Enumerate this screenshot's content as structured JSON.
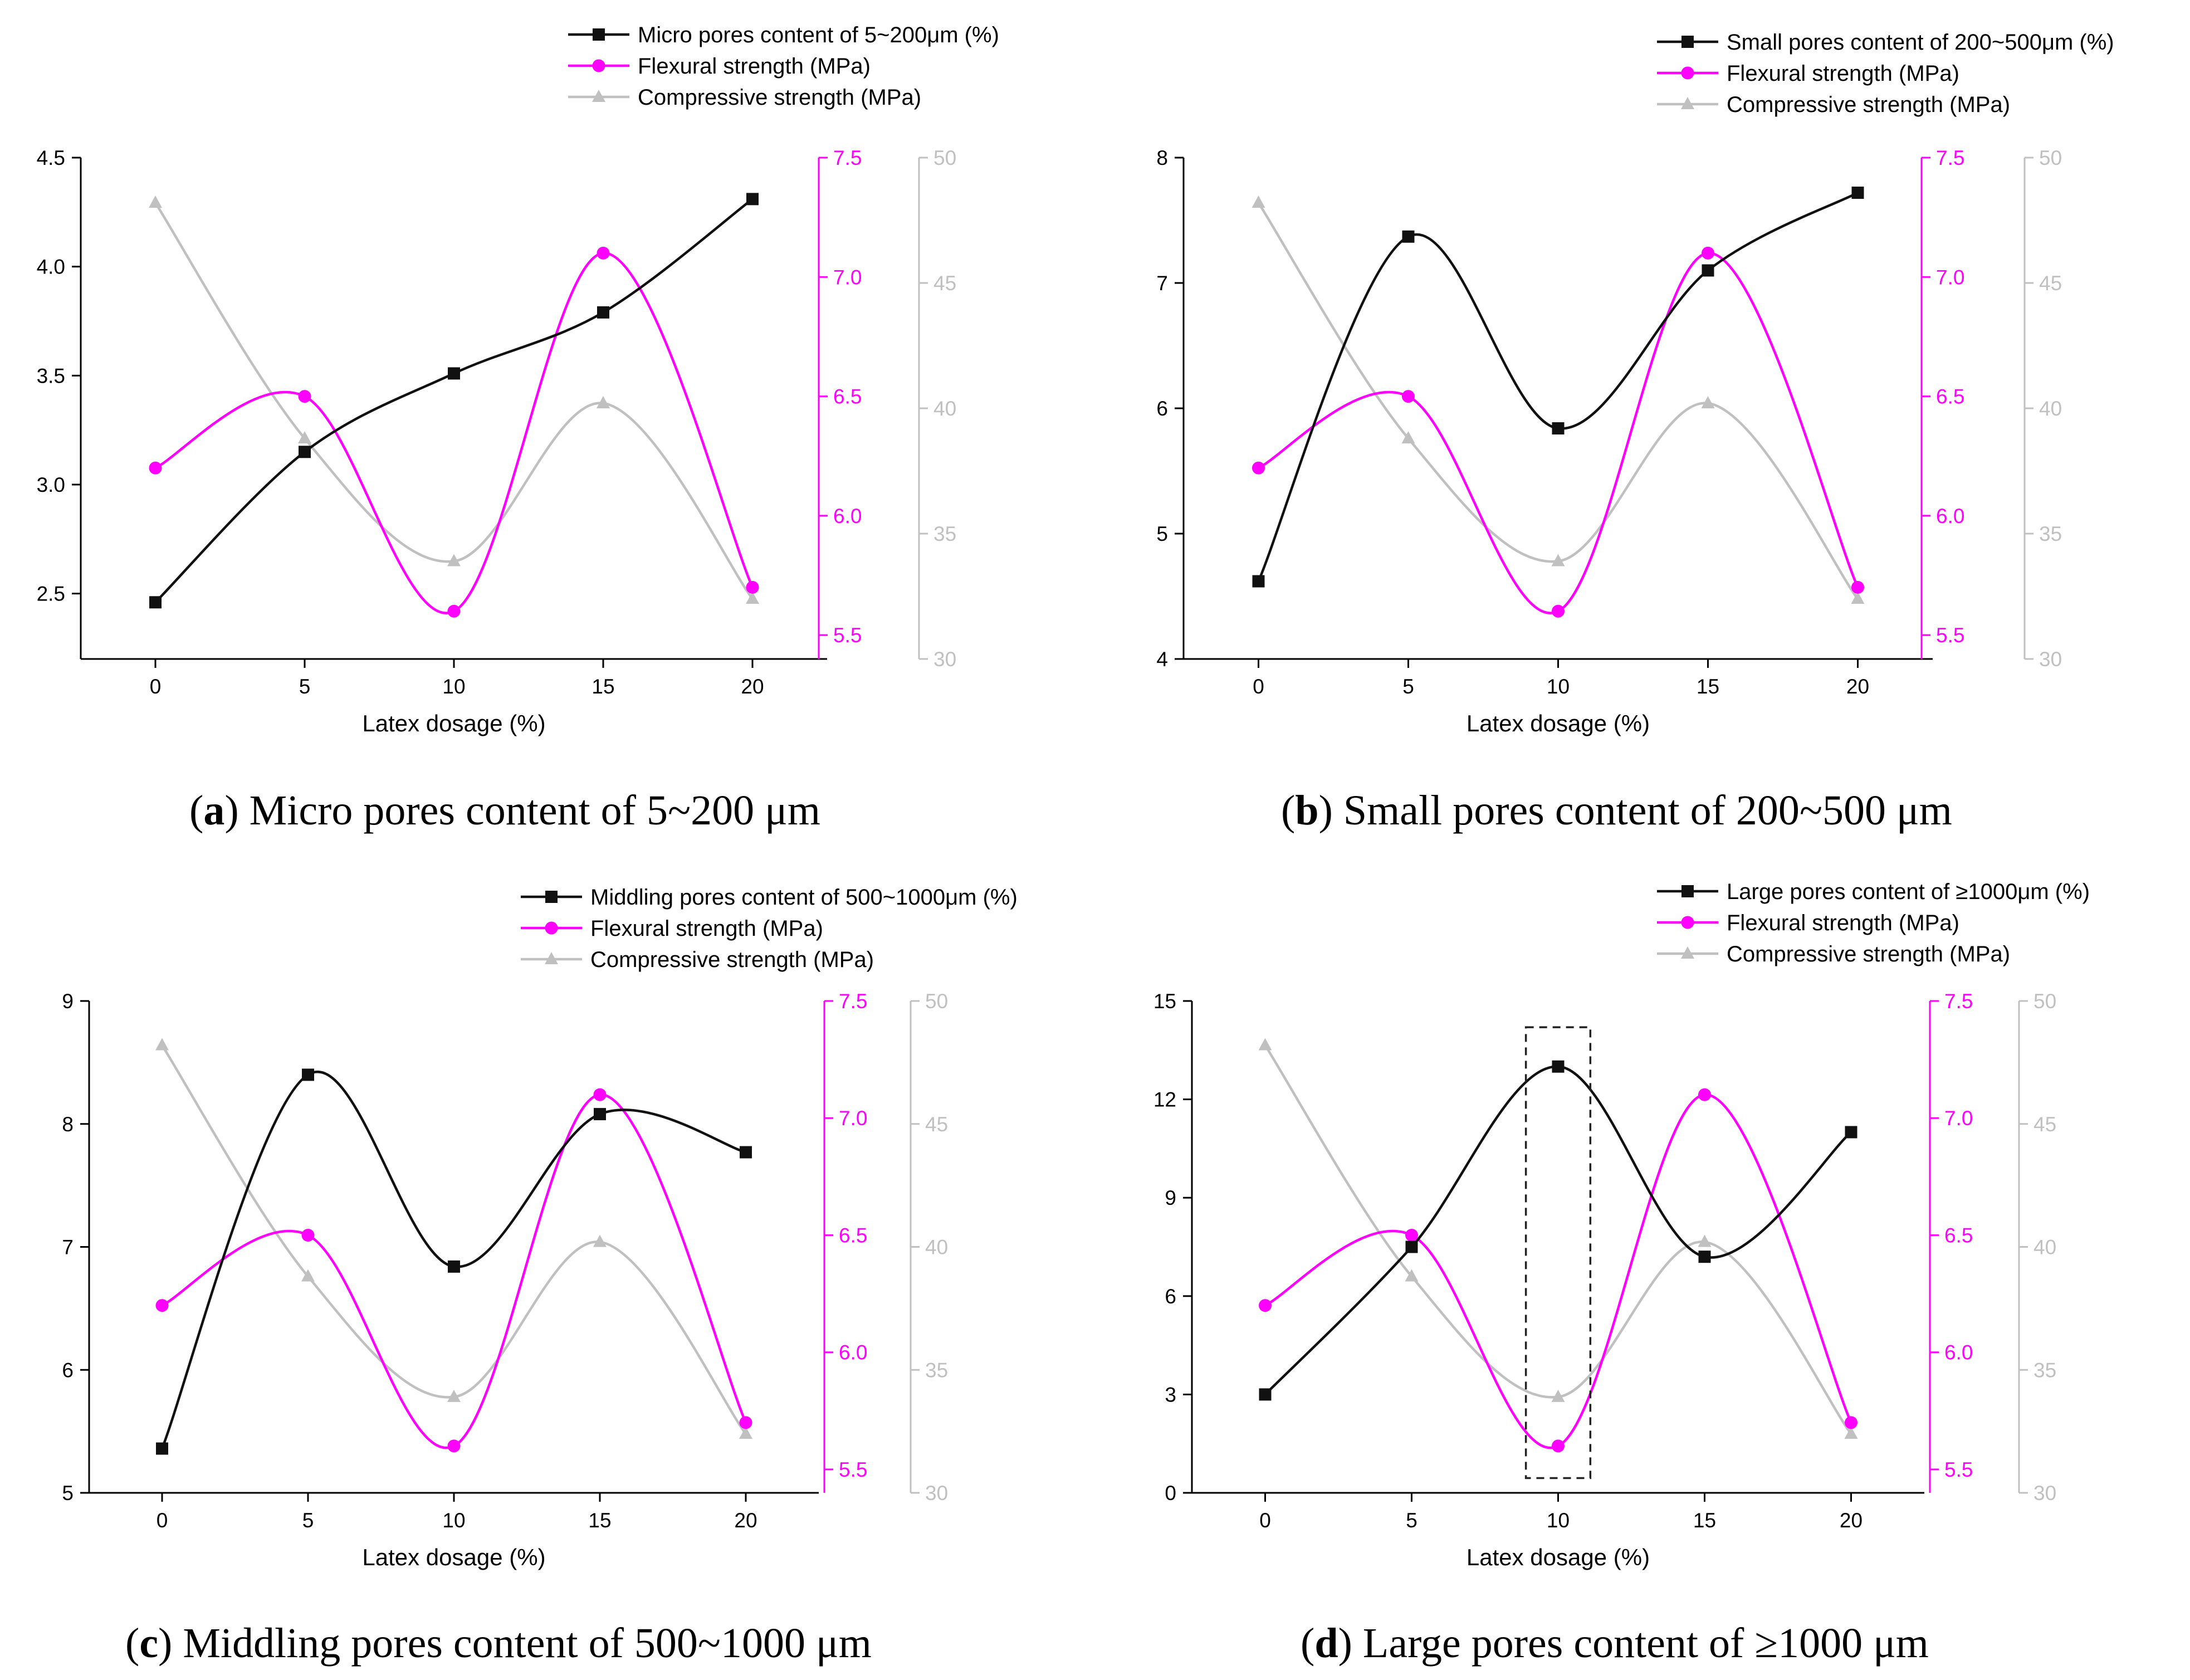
{
  "colors": {
    "pores": "#111111",
    "flexural": "#ff00ff",
    "compressive": "#c0c0c0",
    "axis": "#000000",
    "background": "#ffffff"
  },
  "chart_data": [
    {
      "id": "a",
      "type": "line",
      "caption_letter": "a",
      "caption_text": "Micro pores content of 5~200 μm",
      "xlabel": "Latex dosage (%)",
      "x": [
        0,
        5,
        10,
        15,
        20
      ],
      "x_ticks": [
        "0",
        "5",
        "10",
        "15",
        "20"
      ],
      "xlim": [
        -2.5,
        22.5
      ],
      "axes": {
        "left": {
          "ylim": [
            2.2,
            4.5
          ],
          "ticks": [
            2.5,
            3.0,
            3.5,
            4.0,
            4.5
          ],
          "tick_labels": [
            "2.5",
            "3.0",
            "3.5",
            "4.0",
            "4.5"
          ],
          "color": "#000000"
        },
        "flex": {
          "ylim": [
            5.4,
            7.5
          ],
          "ticks": [
            5.5,
            6.0,
            6.5,
            7.0,
            7.5
          ],
          "tick_labels": [
            "5.5",
            "6.0",
            "6.5",
            "7.0",
            "7.5"
          ],
          "color": "#ff00ff"
        },
        "comp": {
          "ylim": [
            30,
            50
          ],
          "ticks": [
            30,
            35,
            40,
            45,
            50
          ],
          "tick_labels": [
            "30",
            "35",
            "40",
            "45",
            "50"
          ],
          "color": "#c0c0c0"
        }
      },
      "series": [
        {
          "key": "pores",
          "axis": "left",
          "marker": "square",
          "name": "Micro pores content of 5~200μm (%)",
          "values": [
            2.46,
            3.15,
            3.51,
            3.79,
            4.31
          ]
        },
        {
          "key": "flexural",
          "axis": "flex",
          "marker": "circle",
          "name": "Flexural strength (MPa)",
          "values": [
            6.2,
            6.5,
            5.6,
            7.1,
            5.7
          ]
        },
        {
          "key": "compressive",
          "axis": "comp",
          "marker": "triangle",
          "name": "Compressive strength (MPa)",
          "values": [
            48.2,
            38.8,
            33.9,
            40.2,
            32.4
          ]
        }
      ],
      "annotation_box": null
    },
    {
      "id": "b",
      "type": "line",
      "caption_letter": "b",
      "caption_text": "Small pores content of 200~500 μm",
      "xlabel": "Latex dosage (%)",
      "x": [
        0,
        5,
        10,
        15,
        20
      ],
      "x_ticks": [
        "0",
        "5",
        "10",
        "15",
        "20"
      ],
      "xlim": [
        -2.5,
        22.5
      ],
      "axes": {
        "left": {
          "ylim": [
            4,
            8
          ],
          "ticks": [
            4,
            5,
            6,
            7,
            8
          ],
          "tick_labels": [
            "4",
            "5",
            "6",
            "7",
            "8"
          ],
          "color": "#000000"
        },
        "flex": {
          "ylim": [
            5.4,
            7.5
          ],
          "ticks": [
            5.5,
            6.0,
            6.5,
            7.0,
            7.5
          ],
          "tick_labels": [
            "5.5",
            "6.0",
            "6.5",
            "7.0",
            "7.5"
          ],
          "color": "#ff00ff"
        },
        "comp": {
          "ylim": [
            30,
            50
          ],
          "ticks": [
            30,
            35,
            40,
            45,
            50
          ],
          "tick_labels": [
            "30",
            "35",
            "40",
            "45",
            "50"
          ],
          "color": "#c0c0c0"
        }
      },
      "series": [
        {
          "key": "pores",
          "axis": "left",
          "marker": "square",
          "name": "Small pores content of 200~500μm (%)",
          "values": [
            4.62,
            7.37,
            5.84,
            7.1,
            7.72
          ]
        },
        {
          "key": "flexural",
          "axis": "flex",
          "marker": "circle",
          "name": "Flexural strength (MPa)",
          "values": [
            6.2,
            6.5,
            5.6,
            7.1,
            5.7
          ]
        },
        {
          "key": "compressive",
          "axis": "comp",
          "marker": "triangle",
          "name": "Compressive strength (MPa)",
          "values": [
            48.2,
            38.8,
            33.9,
            40.2,
            32.4
          ]
        }
      ],
      "annotation_box": null
    },
    {
      "id": "c",
      "type": "line",
      "caption_letter": "c",
      "caption_text": "Middling pores content of 500~1000 μm",
      "xlabel": "Latex dosage (%)",
      "x": [
        0,
        5,
        10,
        15,
        20
      ],
      "x_ticks": [
        "0",
        "5",
        "10",
        "15",
        "20"
      ],
      "xlim": [
        -2.5,
        22.5
      ],
      "axes": {
        "left": {
          "ylim": [
            5,
            9
          ],
          "ticks": [
            5,
            6,
            7,
            8,
            9
          ],
          "tick_labels": [
            "5",
            "6",
            "7",
            "8",
            "9"
          ],
          "color": "#000000"
        },
        "flex": {
          "ylim": [
            5.4,
            7.5
          ],
          "ticks": [
            5.5,
            6.0,
            6.5,
            7.0,
            7.5
          ],
          "tick_labels": [
            "5.5",
            "6.0",
            "6.5",
            "7.0",
            "7.5"
          ],
          "color": "#ff00ff"
        },
        "comp": {
          "ylim": [
            30,
            50
          ],
          "ticks": [
            30,
            35,
            40,
            45,
            50
          ],
          "tick_labels": [
            "30",
            "35",
            "40",
            "45",
            "50"
          ],
          "color": "#c0c0c0"
        }
      },
      "series": [
        {
          "key": "pores",
          "axis": "left",
          "marker": "square",
          "name": "Middling pores content of 500~1000μm (%)",
          "values": [
            5.36,
            8.4,
            6.84,
            8.08,
            7.77
          ]
        },
        {
          "key": "flexural",
          "axis": "flex",
          "marker": "circle",
          "name": "Flexural strength (MPa)",
          "values": [
            6.2,
            6.5,
            5.6,
            7.1,
            5.7
          ]
        },
        {
          "key": "compressive",
          "axis": "comp",
          "marker": "triangle",
          "name": "Compressive strength (MPa)",
          "values": [
            48.2,
            38.8,
            33.9,
            40.2,
            32.4
          ]
        }
      ],
      "annotation_box": null
    },
    {
      "id": "d",
      "type": "line",
      "caption_letter": "d",
      "caption_text": "Large pores content of ≥1000 μm",
      "xlabel": "Latex dosage (%)",
      "x": [
        0,
        5,
        10,
        15,
        20
      ],
      "x_ticks": [
        "0",
        "5",
        "10",
        "15",
        "20"
      ],
      "xlim": [
        -2.5,
        22.5
      ],
      "axes": {
        "left": {
          "ylim": [
            0,
            15
          ],
          "ticks": [
            0,
            3,
            6,
            9,
            12,
            15
          ],
          "tick_labels": [
            "0",
            "3",
            "6",
            "9",
            "12",
            "15"
          ],
          "color": "#000000"
        },
        "flex": {
          "ylim": [
            5.4,
            7.5
          ],
          "ticks": [
            5.5,
            6.0,
            6.5,
            7.0,
            7.5
          ],
          "tick_labels": [
            "5.5",
            "6.0",
            "6.5",
            "7.0",
            "7.5"
          ],
          "color": "#ff00ff"
        },
        "comp": {
          "ylim": [
            30,
            50
          ],
          "ticks": [
            30,
            35,
            40,
            45,
            50
          ],
          "tick_labels": [
            "30",
            "35",
            "40",
            "45",
            "50"
          ],
          "color": "#c0c0c0"
        }
      },
      "series": [
        {
          "key": "pores",
          "axis": "left",
          "marker": "square",
          "name": "Large pores content of ≥1000μm (%)",
          "values": [
            3.0,
            7.5,
            13.0,
            7.2,
            11.0
          ]
        },
        {
          "key": "flexural",
          "axis": "flex",
          "marker": "circle",
          "name": "Flexural strength (MPa)",
          "values": [
            6.2,
            6.5,
            5.6,
            7.1,
            5.7
          ]
        },
        {
          "key": "compressive",
          "axis": "comp",
          "marker": "triangle",
          "name": "Compressive strength (MPa)",
          "values": [
            48.2,
            38.8,
            33.9,
            40.2,
            32.4
          ]
        }
      ],
      "annotation_box": {
        "x_range": [
          8.9,
          11.1
        ],
        "y_range": [
          0.45,
          14.2
        ],
        "axis": "left",
        "style": "dashed"
      }
    }
  ]
}
